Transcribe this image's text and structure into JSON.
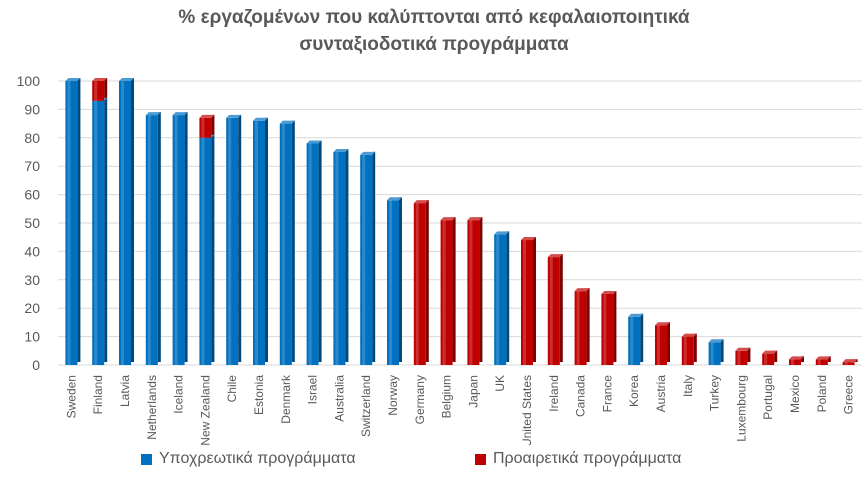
{
  "chart_data": {
    "type": "bar",
    "stacked": true,
    "title": [
      "% εργαζομένων που καλύπτονται από κεφαλαιοποιητικά",
      "συνταξιοδοτικά προγράμματα"
    ],
    "categories": [
      "Sweden",
      "Finland",
      "Latvia",
      "Netherlands",
      "Iceland",
      "New Zealand",
      "Chile",
      "Estonia",
      "Denmark",
      "Israel",
      "Australia",
      "Switzerland",
      "Norway",
      "Germany",
      "Belgium",
      "Japan",
      "UK",
      "United States",
      "Ireland",
      "Canada",
      "France",
      "Korea",
      "Austria",
      "Italy",
      "Turkey",
      "Luxembourg",
      "Portugal",
      "Mexico",
      "Poland",
      "Greece"
    ],
    "series": [
      {
        "name": "Υποχρεωτικά προγράμματα",
        "color": "#0070C0",
        "values": [
          100,
          93,
          100,
          88,
          88,
          80,
          87,
          86,
          85,
          78,
          75,
          74,
          58,
          0,
          0,
          0,
          46,
          0,
          0,
          0,
          0,
          17,
          0,
          0,
          8,
          0,
          0,
          0,
          0,
          0
        ]
      },
      {
        "name": "Προαιρετικά προγράμματα",
        "color": "#C00000",
        "values": [
          0,
          7,
          0,
          0,
          0,
          7,
          0,
          0,
          0,
          0,
          0,
          0,
          0,
          57,
          51,
          51,
          0,
          44,
          38,
          26,
          25,
          0,
          14,
          10,
          0,
          5,
          4,
          2,
          2,
          1
        ]
      }
    ],
    "y_ticks": [
      0,
      10,
      20,
      30,
      40,
      50,
      60,
      70,
      80,
      90,
      100
    ],
    "ylim": [
      0,
      100
    ],
    "grid": true,
    "legend_position": "bottom"
  }
}
